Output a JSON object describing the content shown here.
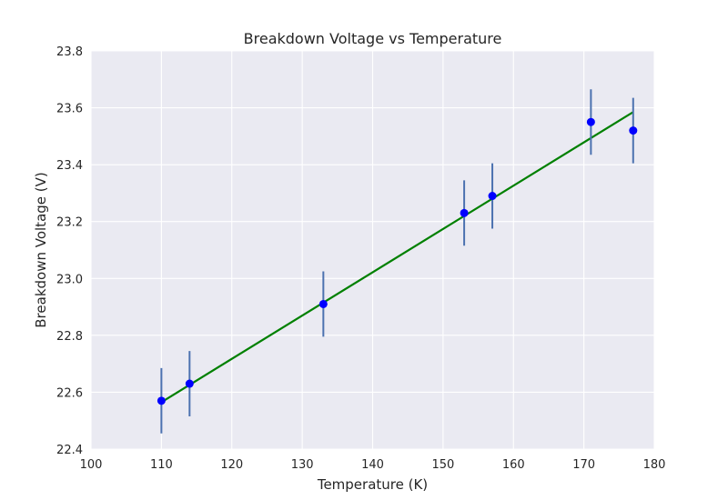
{
  "chart_data": {
    "type": "scatter",
    "title": "Breakdown Voltage vs Temperature",
    "xlabel": "Temperature (K)",
    "ylabel": "Breakdown Voltage (V)",
    "xlim": [
      100,
      180
    ],
    "ylim": [
      22.4,
      23.8
    ],
    "xticks": [
      "100",
      "110",
      "120",
      "130",
      "140",
      "150",
      "160",
      "170",
      "180"
    ],
    "yticks": [
      "22.4",
      "22.6",
      "22.8",
      "23.0",
      "23.2",
      "23.4",
      "23.6",
      "23.8"
    ],
    "grid": true,
    "series": [
      {
        "kind": "errorbar-points",
        "x": [
          110,
          114,
          133,
          153,
          157,
          171,
          177
        ],
        "y": [
          22.57,
          22.63,
          22.91,
          23.23,
          23.29,
          23.55,
          23.52
        ],
        "yerr": [
          0.115,
          0.115,
          0.115,
          0.115,
          0.115,
          0.115,
          0.115
        ]
      },
      {
        "kind": "fit-line",
        "x": [
          110,
          177
        ],
        "y": [
          22.565,
          23.585
        ]
      }
    ],
    "colors": {
      "background": "#eaeaf2",
      "grid": "#ffffff",
      "points": "#0000ff",
      "errorbars": "#4c72b0",
      "fit": "#008000"
    }
  }
}
